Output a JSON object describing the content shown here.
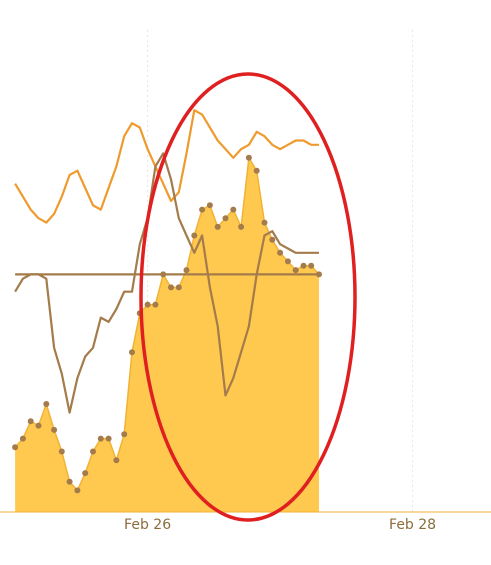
{
  "chart_data": {
    "type": "area",
    "title": "",
    "xlabel": "",
    "ylabel": "",
    "x_ticks": [
      {
        "label": "Feb 26",
        "x": 17
      },
      {
        "label": "Feb 28",
        "x": 51
      }
    ],
    "x_range": [
      -2,
      61
    ],
    "ylim": [
      0,
      100
    ],
    "grid": true,
    "legend": "none",
    "series": [
      {
        "kind": "area",
        "color": "#ffc84f",
        "marker_color": "#a47b4a",
        "values": [
          15,
          17,
          21,
          20,
          25,
          19,
          14,
          7,
          5,
          9,
          14,
          17,
          17,
          12,
          18,
          37,
          46,
          48,
          48,
          55,
          52,
          52,
          56,
          64,
          70,
          71,
          66,
          68,
          70,
          66,
          82,
          79,
          67,
          63,
          60,
          58,
          56,
          57,
          57,
          55
        ]
      },
      {
        "kind": "line",
        "color": "#ef9a2d",
        "values": [
          76,
          73,
          70,
          68,
          67,
          69,
          73,
          78,
          79,
          75,
          71,
          70,
          75,
          80,
          87,
          90,
          89,
          84,
          80,
          76,
          72,
          74,
          83,
          93,
          92,
          89,
          86,
          84,
          82,
          84,
          85,
          88,
          87,
          85,
          84,
          85,
          86,
          86,
          85,
          85
        ]
      },
      {
        "kind": "line",
        "color": "#a47b4a",
        "values": [
          51,
          54,
          55,
          55,
          54,
          38,
          32,
          23,
          31,
          36,
          38,
          45,
          44,
          47,
          51,
          51,
          62,
          68,
          80,
          83,
          77,
          68,
          64,
          60,
          64,
          52,
          43,
          27,
          31,
          37,
          43,
          55,
          64,
          65,
          62,
          61,
          60,
          60,
          60,
          60
        ]
      },
      {
        "kind": "line",
        "color": "#a47b4a",
        "values": [
          55,
          55,
          55,
          55,
          55,
          55,
          55,
          55,
          55,
          55,
          55,
          55,
          55,
          55,
          55,
          55,
          55,
          55,
          55,
          55,
          55,
          55,
          55,
          55,
          55,
          55,
          55,
          55,
          55,
          55,
          55,
          55,
          55,
          55,
          55,
          55,
          55,
          55,
          55,
          55
        ]
      }
    ],
    "annotations": [
      {
        "type": "ellipse",
        "color": "#e02020"
      }
    ]
  }
}
